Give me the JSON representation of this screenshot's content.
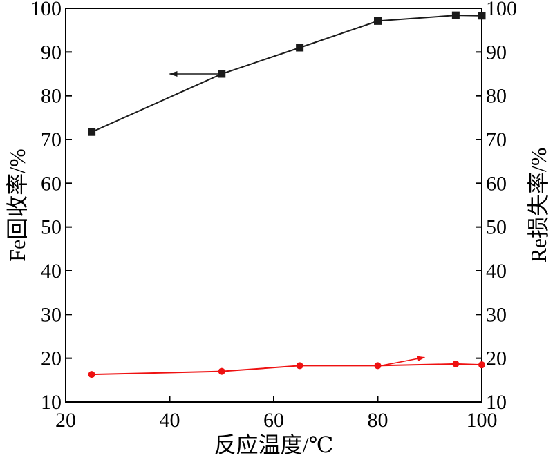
{
  "chart_data": {
    "type": "line",
    "xlabel": "反应温度/℃",
    "ylabel_left": "Fe回收率/%",
    "ylabel_right": "Re损失率/%",
    "xlim": [
      20,
      100
    ],
    "ylim_left": [
      10,
      100
    ],
    "ylim_right": [
      10,
      100
    ],
    "x_ticks": [
      "20",
      "40",
      "60",
      "80",
      "100"
    ],
    "y_ticks_left": [
      "10",
      "20",
      "30",
      "40",
      "50",
      "60",
      "70",
      "80",
      "90",
      "100"
    ],
    "y_ticks_right": [
      "10",
      "20",
      "30",
      "40",
      "50",
      "60",
      "70",
      "80",
      "90",
      "100"
    ],
    "grid": false,
    "series": [
      {
        "axis": "left",
        "color": "#1a1a1a",
        "marker": "square",
        "x": [
          25,
          50,
          65,
          80,
          95,
          100
        ],
        "y": [
          71.7,
          85.0,
          91.0,
          97.1,
          98.4,
          98.3
        ]
      },
      {
        "axis": "right",
        "color": "#ee1111",
        "marker": "circle",
        "x": [
          25,
          50,
          65,
          80,
          95,
          100
        ],
        "y": [
          16.3,
          17.0,
          18.3,
          18.3,
          18.7,
          18.5
        ]
      }
    ],
    "annotations": [
      {
        "type": "arrow",
        "direction": "left",
        "color": "#1a1a1a",
        "from": [
          50,
          85
        ],
        "to": [
          40,
          85
        ]
      },
      {
        "type": "arrow",
        "direction": "right",
        "color": "#ee1111",
        "from": [
          81,
          18.4
        ],
        "to": [
          89,
          20.2
        ]
      }
    ]
  }
}
